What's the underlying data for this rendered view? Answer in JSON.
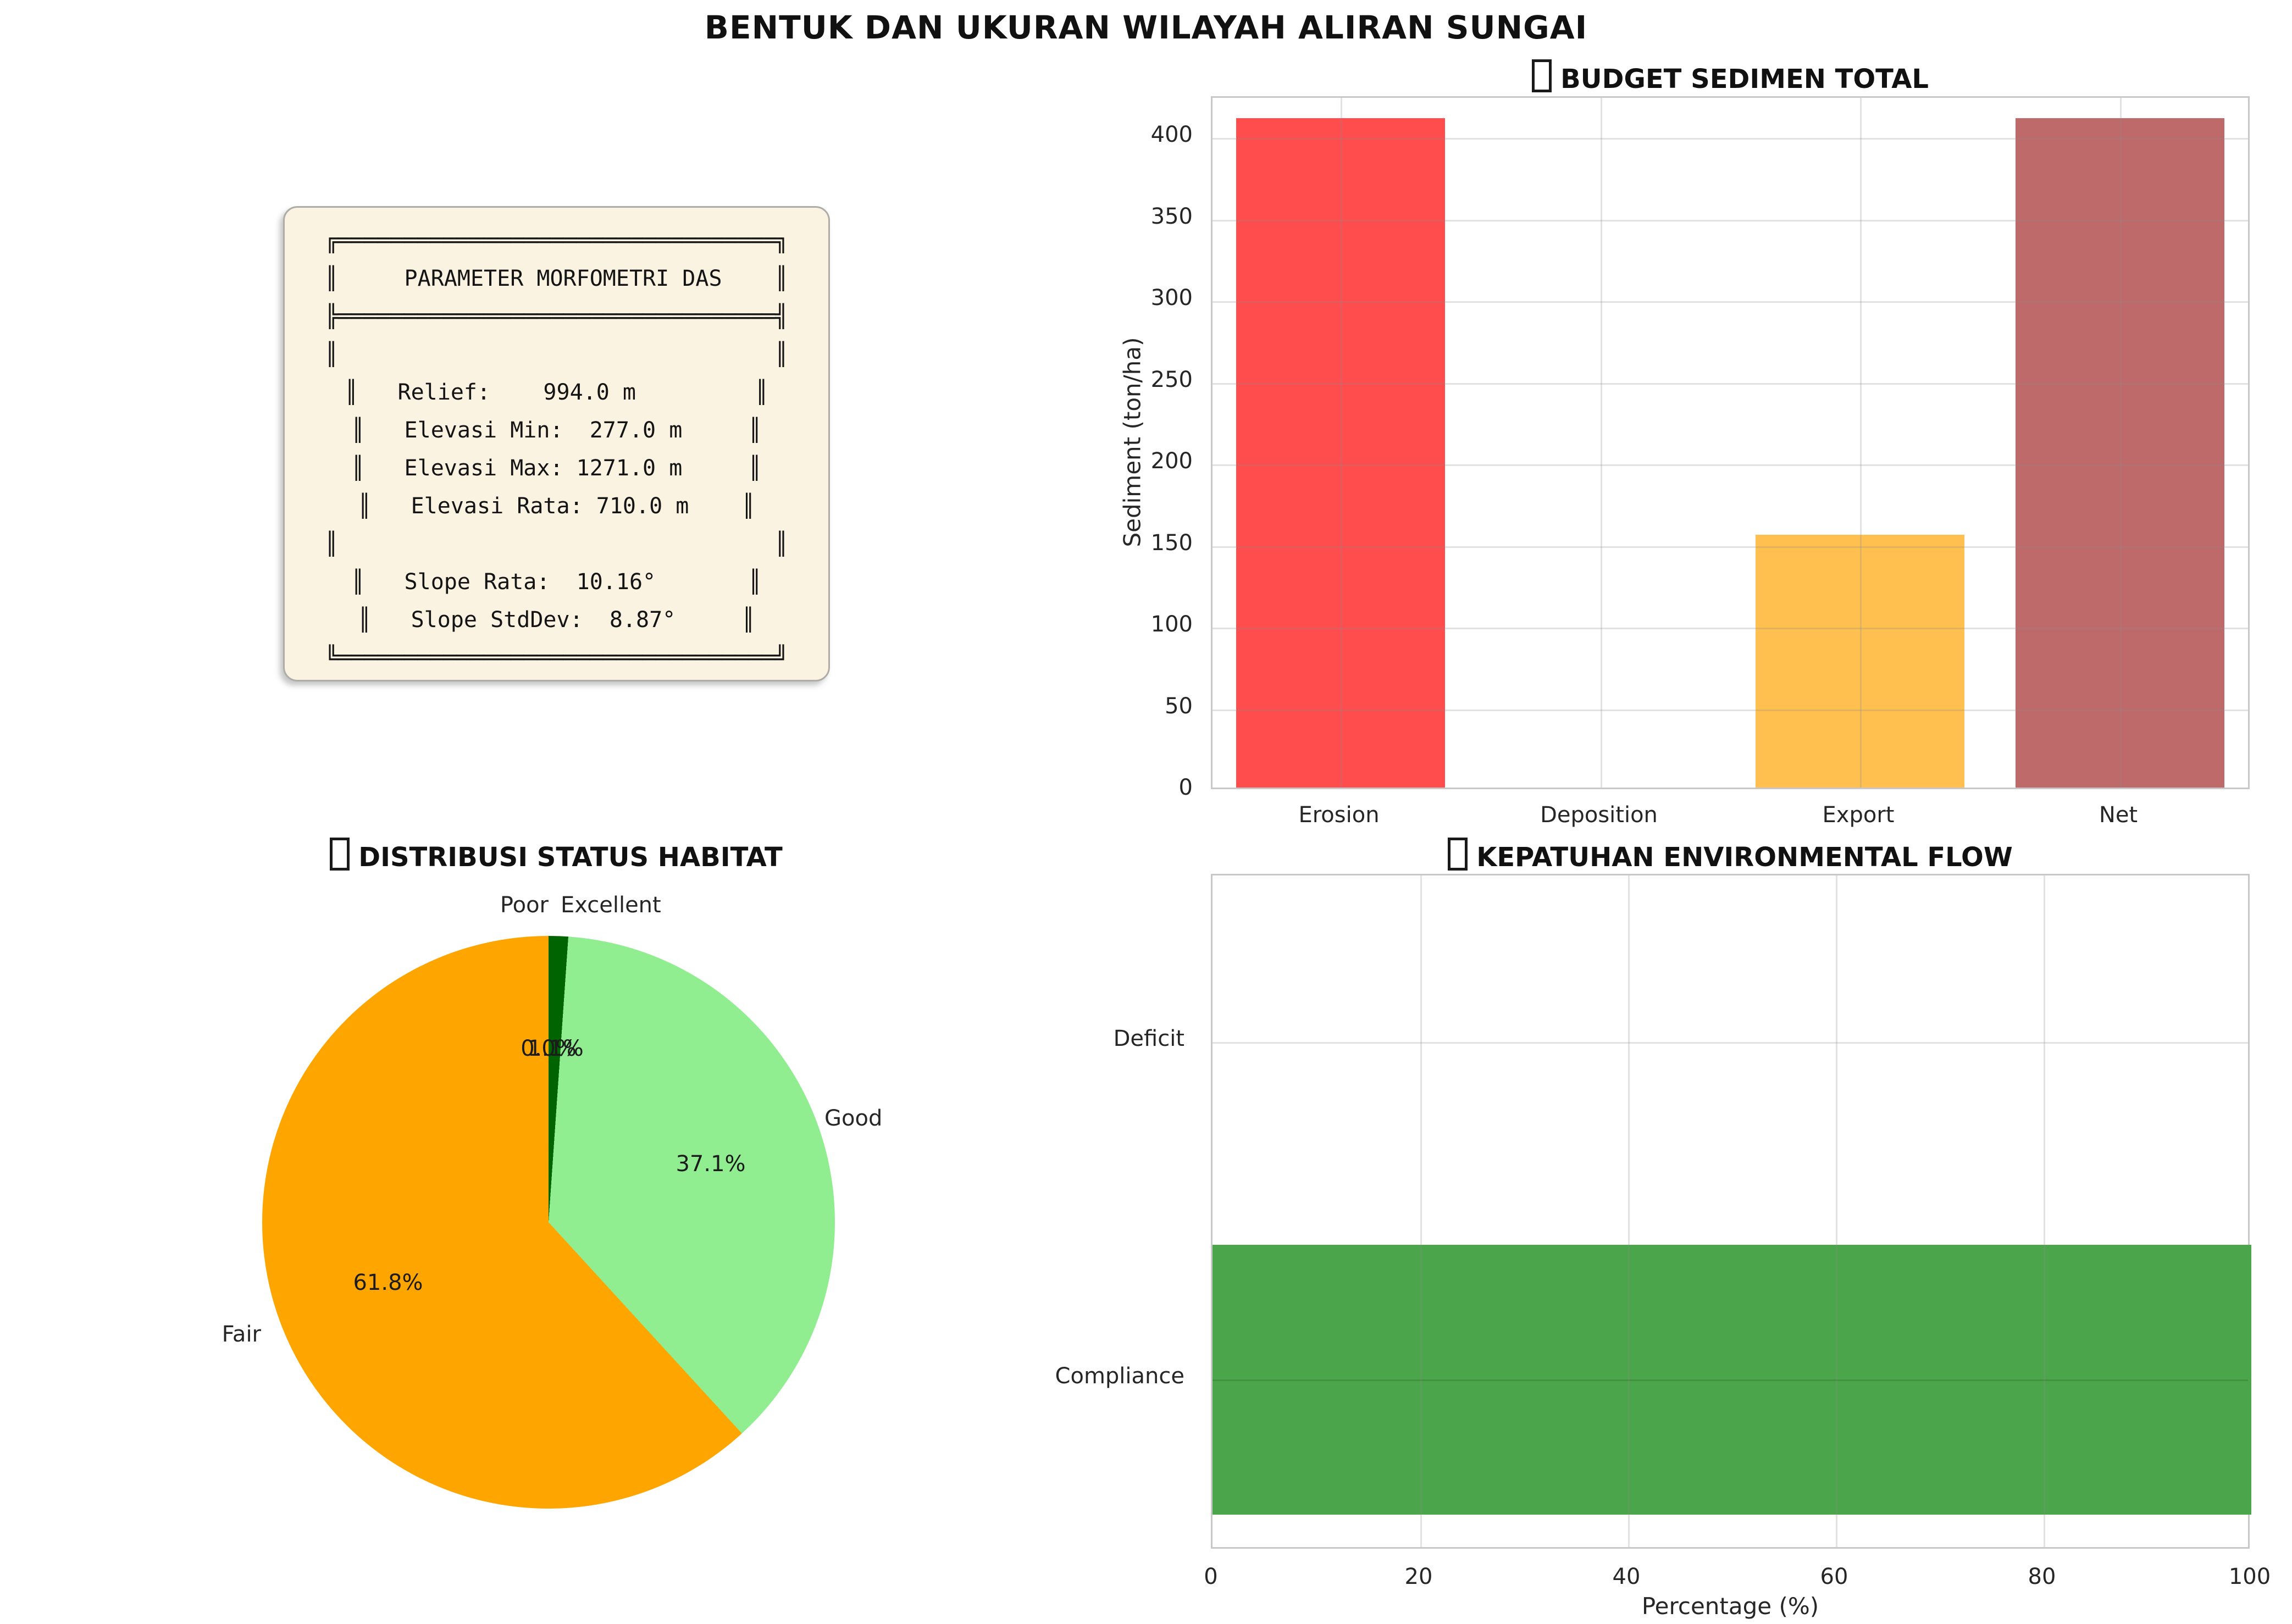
{
  "suptitle": "BENTUK DAN UKURAN WILAYAH ALIRAN SUNGAI",
  "param_panel": {
    "background": "#faf3e2",
    "border_color": "#aeaca6",
    "lines": [
      "╔═════════════════════════════════╗",
      "║     PARAMETER MORFOMETRI DAS    ║",
      "╠═════════════════════════════════╣",
      "║                                 ║",
      "║   Relief:    994.0 m         ║",
      "║   Elevasi Min:  277.0 m     ║",
      "║   Elevasi Max: 1271.0 m     ║",
      "║   Elevasi Rata: 710.0 m    ║",
      "║                                 ║",
      "║   Slope Rata:  10.16°       ║",
      "║   Slope StdDev:  8.87°     ║",
      "╚═════════════════════════════════╝"
    ]
  },
  "chart_data": [
    {
      "type": "bar",
      "title": "BUDGET SEDIMEN TOTAL",
      "categories": [
        "Erosion",
        "Deposition",
        "Export",
        "Net"
      ],
      "values": [
        410,
        0,
        155,
        410
      ],
      "bar_colors": [
        "#ff4c4c",
        null,
        "#ffc04f",
        "#bf6a6a"
      ],
      "xlabel": "",
      "ylabel": "Sediment (ton/ha)",
      "yticks": [
        "0",
        "50",
        "100",
        "150",
        "200",
        "250",
        "300",
        "350",
        "400"
      ],
      "ylim": [
        0,
        424
      ],
      "grid": true,
      "legend": false
    },
    {
      "type": "pie",
      "title": "DISTRIBUSI STATUS HABITAT",
      "labels": [
        "Poor",
        "Excellent",
        "Good",
        "Fair"
      ],
      "values": [
        0.0,
        1.1,
        37.1,
        61.8
      ],
      "pct_labels": [
        "0.0%",
        "1.1%",
        "37.1%",
        "61.8%"
      ],
      "colors": [
        "#006400",
        "#006400",
        "#90ee90",
        "#ffa500"
      ],
      "start_angle_deg": 90,
      "direction": "clockwise",
      "legend": false
    },
    {
      "type": "barh",
      "title": "KEPATUHAN ENVIRONMENTAL FLOW",
      "categories": [
        "Deficit",
        "Compliance"
      ],
      "values": [
        0,
        100
      ],
      "bar_color": "#4ba64b",
      "xlabel": "Percentage (%)",
      "xticks": [
        "0",
        "20",
        "40",
        "60",
        "80",
        "100"
      ],
      "xlim": [
        0,
        100
      ],
      "grid": true,
      "legend": false
    }
  ]
}
